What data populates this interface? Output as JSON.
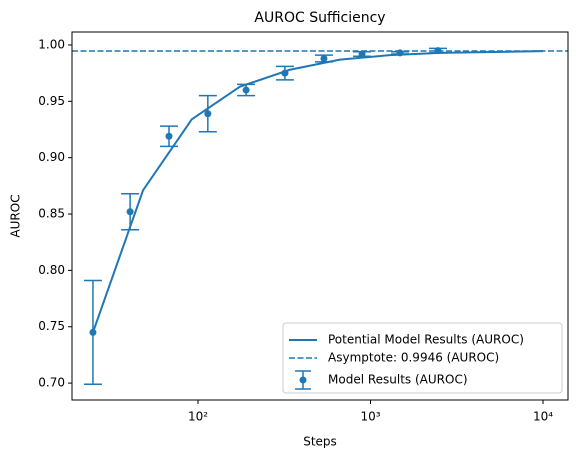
{
  "chart_data": {
    "type": "line",
    "title": "AUROC Sufficiency",
    "x_label": "Steps",
    "y_label": "AUROC",
    "xscale": "log",
    "xlim": [
      18.6,
      13960
    ],
    "ylim": [
      0.685,
      1.0115
    ],
    "xticks": [
      {
        "value": 100,
        "label": "10²"
      },
      {
        "value": 1000,
        "label": "10³"
      },
      {
        "value": 10000,
        "label": "10⁴"
      }
    ],
    "yticks": [
      {
        "value": 0.7,
        "label": "0.70"
      },
      0.75,
      {
        "value": 0.8,
        "label": "0.80"
      },
      0.85,
      {
        "value": 0.9,
        "label": "0.90"
      },
      0.95,
      {
        "value": 1.0,
        "label": "1.00"
      }
    ],
    "legend": "lower right",
    "series": [
      {
        "name": "Potential Model Results (AUROC)",
        "color": "#1f77b4",
        "style": "solid",
        "x": [
          24.6,
          48,
          92,
          175,
          341,
          665,
          1297,
          2529,
          10000
        ],
        "values": [
          0.745,
          0.871,
          0.934,
          0.963,
          0.978,
          0.987,
          0.991,
          0.993,
          0.9945
        ]
      }
    ],
    "reference_line": {
      "name": "Asymptote: 0.9946 (AUROC)",
      "value": 0.9946,
      "color": "#1f77b4",
      "style": "dashed"
    },
    "errorbar": {
      "name": "Model Results (AUROC)",
      "color": "#1f77b4",
      "x": [
        24.6,
        40.4,
        67.9,
        114,
        190,
        319,
        537,
        893,
        1483,
        2460
      ],
      "values": [
        0.745,
        0.852,
        0.919,
        0.939,
        0.96,
        0.975,
        0.988,
        0.992,
        0.993,
        0.995
      ],
      "errors": [
        0.046,
        0.016,
        0.009,
        0.016,
        0.005,
        0.006,
        0.003,
        0.002,
        0.001,
        0.002
      ]
    }
  }
}
